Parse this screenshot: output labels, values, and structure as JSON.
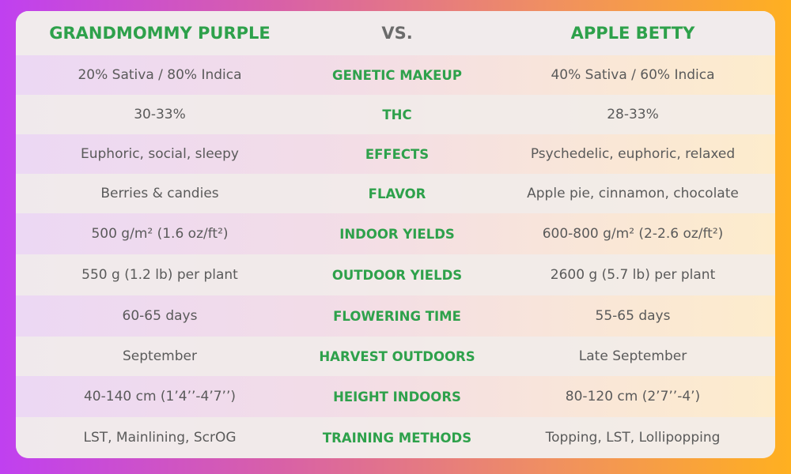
{
  "header": {
    "left": "GRANDMOMMY PURPLE",
    "middle": "VS.",
    "right": "APPLE BETTY"
  },
  "rows": [
    {
      "left": "20% Sativa / 80% Indica",
      "attribute": "GENETIC MAKEUP",
      "right": "40% Sativa / 60% Indica"
    },
    {
      "left": "30-33%",
      "attribute": "THC",
      "right": "28-33%"
    },
    {
      "left": "Euphoric, social, sleepy",
      "attribute": "EFFECTS",
      "right": "Psychedelic, euphoric, relaxed"
    },
    {
      "left": "Berries & candies",
      "attribute": "FLAVOR",
      "right": "Apple pie, cinnamon, chocolate"
    },
    {
      "left": "500 g/m² (1.6 oz/ft²)",
      "attribute": "INDOOR YIELDS",
      "right": "600-800 g/m² (2-2.6 oz/ft²)"
    },
    {
      "left": "550 g (1.2 lb) per plant",
      "attribute": "OUTDOOR YIELDS",
      "right": "2600 g (5.7 lb) per plant"
    },
    {
      "left": "60-65 days",
      "attribute": "FLOWERING TIME",
      "right": "55-65 days"
    },
    {
      "left": "September",
      "attribute": "HARVEST OUTDOORS",
      "right": "Late September"
    },
    {
      "left": "40-140 cm (1’4’’-4’7’’)",
      "attribute": "HEIGHT INDOORS",
      "right": "80-120 cm (2’7’’-4’)"
    },
    {
      "left": "LST, Mainlining, ScrOG",
      "attribute": "TRAINING METHODS",
      "right": "Topping, LST, Lollipopping"
    }
  ],
  "colors": {
    "accent_green": "#2ea14b",
    "text_gray": "#5a5a5a",
    "vs_gray": "#6b6b6b"
  }
}
